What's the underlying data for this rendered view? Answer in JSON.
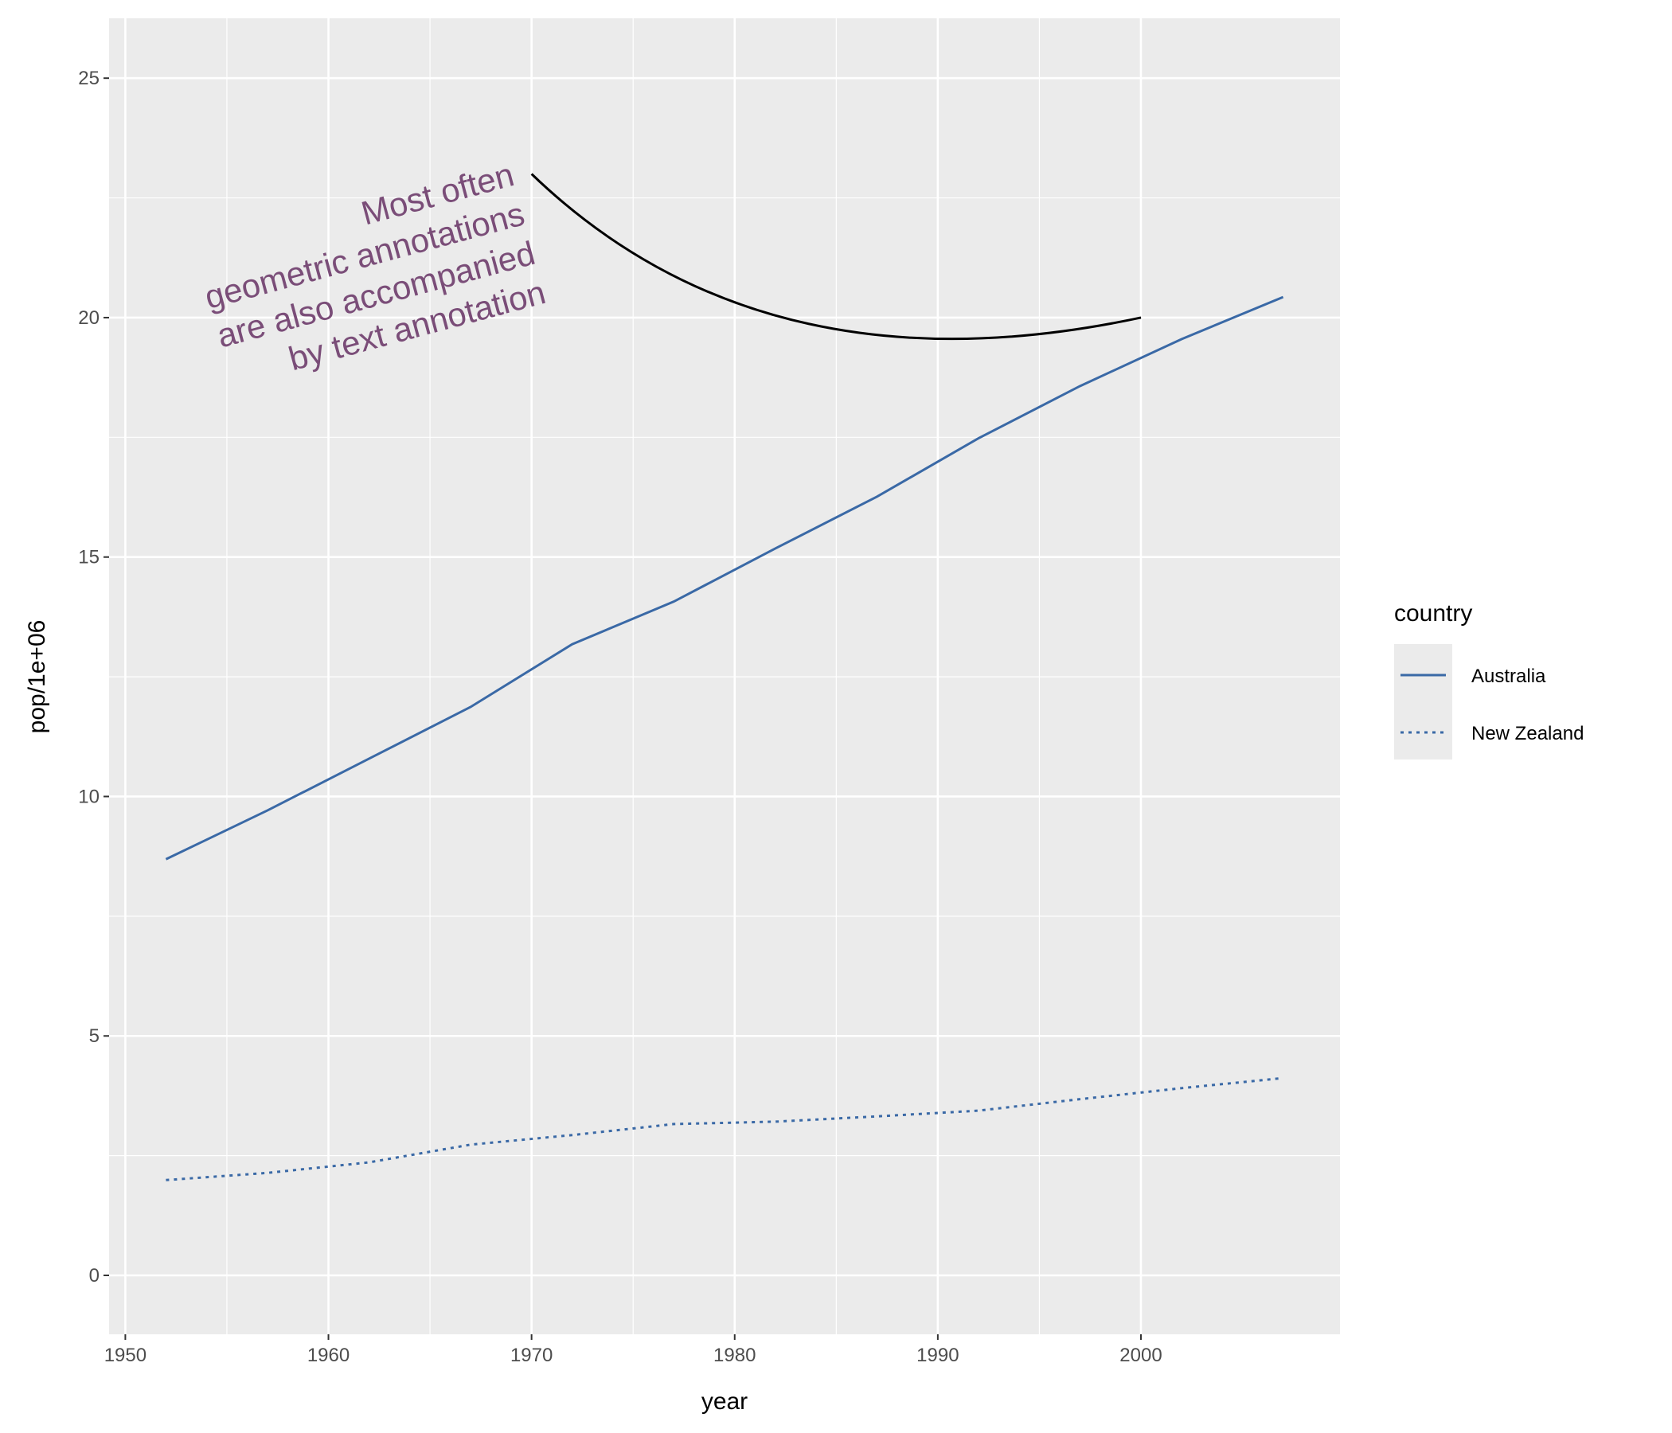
{
  "chart_data": {
    "type": "line",
    "x_label": "year",
    "y_label": "pop/1e+06",
    "x": [
      1952,
      1957,
      1962,
      1967,
      1972,
      1977,
      1982,
      1987,
      1992,
      1997,
      2002,
      2007
    ],
    "series": [
      {
        "name": "Australia",
        "color": "#3a69a6",
        "linetype": "solid",
        "values": [
          8.69,
          9.71,
          10.79,
          11.87,
          13.18,
          14.07,
          15.18,
          16.26,
          17.48,
          18.57,
          19.55,
          20.43
        ]
      },
      {
        "name": "New Zealand",
        "color": "#3a69a6",
        "linetype": "dotted",
        "values": [
          1.99,
          2.14,
          2.36,
          2.73,
          2.93,
          3.16,
          3.21,
          3.32,
          3.44,
          3.68,
          3.91,
          4.12
        ]
      }
    ],
    "legend_title": "country",
    "legend_position": "right",
    "xlim": [
      1949.2,
      2009.8
    ],
    "ylim": [
      -1.23,
      26.25
    ],
    "xticks": [
      1950,
      1960,
      1970,
      1980,
      1990,
      2000
    ],
    "yticks": [
      0,
      5,
      10,
      15,
      20,
      25
    ],
    "grid": true,
    "annotation_curve": {
      "x": [
        1970,
        2000
      ],
      "y": [
        23,
        20
      ],
      "color": "#000000"
    },
    "annotation_text": {
      "lines": [
        "Most often",
        "geometric annotations",
        "are also accompanied",
        "by text annotation"
      ],
      "color": "#7a4d78"
    }
  }
}
